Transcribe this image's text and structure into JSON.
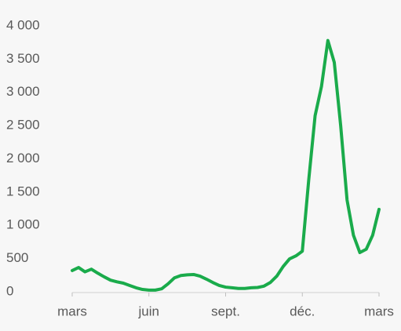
{
  "chart_data": {
    "type": "line",
    "categories": [
      "mars",
      null,
      null,
      null,
      null,
      null,
      null,
      null,
      null,
      null,
      null,
      null,
      "juin",
      null,
      null,
      null,
      null,
      null,
      null,
      null,
      null,
      null,
      null,
      null,
      "sept.",
      null,
      null,
      null,
      null,
      null,
      null,
      null,
      null,
      null,
      null,
      null,
      "déc.",
      null,
      null,
      null,
      null,
      null,
      null,
      null,
      null,
      null,
      null,
      null,
      "mars"
    ],
    "series": [
      {
        "color": "#1aab4b",
        "values": [
          320,
          365,
          300,
          340,
          280,
          225,
          175,
          150,
          130,
          95,
          60,
          35,
          25,
          25,
          45,
          120,
          210,
          245,
          255,
          260,
          235,
          190,
          140,
          95,
          70,
          60,
          50,
          50,
          60,
          65,
          85,
          140,
          235,
          380,
          495,
          540,
          610,
          1680,
          2650,
          3090,
          3780,
          3450,
          2500,
          1380,
          850,
          590,
          640,
          850,
          1240
        ]
      }
    ],
    "ylim": [
      0,
      4000
    ],
    "yticks": [
      0,
      500,
      {
        "value": 1000,
        "label": "1 000"
      },
      {
        "value": 1500,
        "label": "1 500"
      },
      {
        "value": 2000,
        "label": "2 000"
      },
      {
        "value": 2500,
        "label": "2 500"
      },
      {
        "value": 3000,
        "label": "3 000"
      },
      {
        "value": 3500,
        "label": "3 500"
      },
      {
        "value": 4000,
        "label": "4 000"
      }
    ],
    "grid": false
  }
}
